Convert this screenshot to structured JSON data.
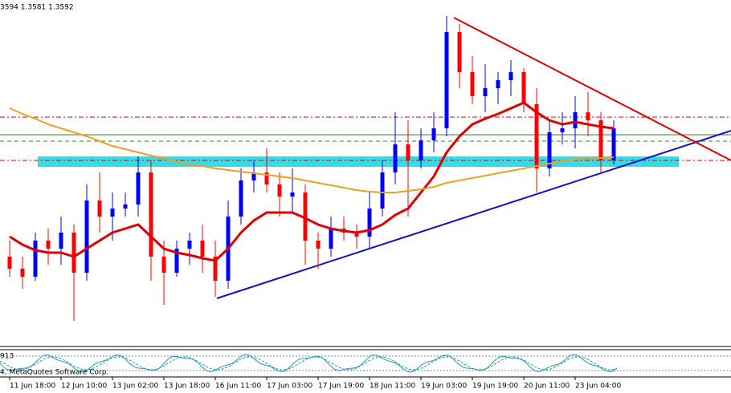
{
  "chart_data": {
    "type": "candlestick",
    "header": "3594 1.3581 1.3592",
    "indicator_label": "913",
    "copyright": "4, MetaQuotes Software Corp.",
    "ylim": [
      1.3395,
      1.361
    ],
    "categories": [
      "11 Jun 18:00",
      null,
      null,
      null,
      "12 Jun 10:00",
      null,
      null,
      null,
      "13 Jun 02:00",
      null,
      null,
      null,
      "13 Jun 18:00",
      null,
      null,
      null,
      "16 Jun 11:00",
      null,
      null,
      null,
      "17 Jun 03:00",
      null,
      null,
      null,
      "17 Jun 19:00",
      null,
      null,
      null,
      "18 Jun 11:00",
      null,
      null,
      null,
      "19 Jun 03:00",
      null,
      null,
      null,
      "19 Jun 19:00",
      null,
      null,
      null,
      "20 Jun 11:00",
      null,
      null,
      null,
      "23 Jun 04:00",
      null,
      null,
      null
    ],
    "up_color": "#0000ff",
    "down_color": "#ff0000",
    "open": [
      1.345,
      1.34425,
      1.34375,
      1.346,
      1.3455,
      1.3465,
      1.344,
      1.3485,
      1.3475,
      1.348,
      1.34825,
      1.35025,
      1.345,
      1.344,
      1.3455,
      1.346,
      1.345,
      1.3435,
      1.3475,
      1.34975,
      1.35025,
      1.3495,
      1.34875,
      1.349,
      1.346,
      1.3455,
      1.34675,
      1.3465,
      1.34625,
      1.348,
      1.35025,
      1.352,
      1.351,
      1.35225,
      1.353,
      1.359,
      1.3565,
      1.355,
      1.3555,
      1.356,
      1.3565,
      1.3545,
      1.3505,
      1.35275,
      1.353,
      1.354,
      1.3535,
      1.351
    ],
    "high": [
      1.346,
      1.345,
      1.3465,
      1.34675,
      1.3475,
      1.347,
      1.3495,
      1.35025,
      1.349,
      1.349,
      1.35125,
      1.351,
      1.346,
      1.346,
      1.3465,
      1.347,
      1.346,
      1.3485,
      1.3505,
      1.351,
      1.35175,
      1.35025,
      1.3505,
      1.3495,
      1.3465,
      1.3475,
      1.3475,
      1.347,
      1.349,
      1.351,
      1.354,
      1.3535,
      1.353,
      1.354,
      1.36,
      1.3595,
      1.3575,
      1.357,
      1.3565,
      1.35725,
      1.35675,
      1.3555,
      1.3535,
      1.354,
      1.355,
      1.35525,
      1.354,
      1.3535
    ],
    "low": [
      1.34375,
      1.343,
      1.3435,
      1.3445,
      1.3445,
      1.341,
      1.3435,
      1.3465,
      1.346,
      1.3475,
      1.3475,
      1.3435,
      1.342,
      1.34375,
      1.3445,
      1.344,
      1.3425,
      1.343,
      1.347,
      1.349,
      1.349,
      1.3475,
      1.34775,
      1.3445,
      1.34425,
      1.345,
      1.346,
      1.3455,
      1.3455,
      1.3475,
      1.3495,
      1.3475,
      1.3505,
      1.3515,
      1.3525,
      1.3555,
      1.3545,
      1.354,
      1.3545,
      1.355,
      1.354,
      1.349,
      1.35,
      1.352,
      1.35175,
      1.3525,
      1.35025,
      1.35075
    ],
    "close": [
      1.34425,
      1.34375,
      1.346,
      1.3455,
      1.3465,
      1.344,
      1.3485,
      1.3475,
      1.348,
      1.34825,
      1.35025,
      1.345,
      1.344,
      1.3455,
      1.346,
      1.345,
      1.3435,
      1.3475,
      1.34975,
      1.35025,
      1.3495,
      1.34875,
      1.349,
      1.346,
      1.3455,
      1.34675,
      1.3465,
      1.34625,
      1.348,
      1.35025,
      1.352,
      1.351,
      1.35225,
      1.353,
      1.359,
      1.3565,
      1.355,
      1.3555,
      1.356,
      1.3565,
      1.3545,
      1.3505,
      1.35275,
      1.353,
      1.354,
      1.3535,
      1.351,
      1.353
    ],
    "series": [
      {
        "color": "#e00000",
        "values": [
          1.34625,
          1.34575,
          1.3454,
          1.34525,
          1.34525,
          1.345,
          1.3455,
          1.346,
          1.3465,
          1.34675,
          1.347,
          1.34625,
          1.3455,
          1.34525,
          1.3451,
          1.3449,
          1.34475,
          1.3455,
          1.3465,
          1.34725,
          1.34775,
          1.34775,
          1.34775,
          1.3474,
          1.347,
          1.34675,
          1.3466,
          1.3465,
          1.34665,
          1.347,
          1.3476,
          1.348,
          1.349,
          1.35,
          1.3515,
          1.3525,
          1.35325,
          1.3536,
          1.3539,
          1.35425,
          1.3546,
          1.354,
          1.3535,
          1.35325,
          1.3534,
          1.35325,
          1.3531,
          1.353
        ]
      },
      {
        "color": "#f0a020",
        "values": [
          1.35425,
          1.3539,
          1.3536,
          1.35325,
          1.353,
          1.35275,
          1.3525,
          1.3522,
          1.3519,
          1.3517,
          1.3515,
          1.3513,
          1.3511,
          1.3509,
          1.35075,
          1.35065,
          1.3505,
          1.3504,
          1.3503,
          1.3502,
          1.3501,
          1.35,
          1.3499,
          1.34975,
          1.3496,
          1.34945,
          1.3493,
          1.34915,
          1.34905,
          1.349,
          1.349,
          1.3491,
          1.3492,
          1.34935,
          1.3496,
          1.34975,
          1.3499,
          1.35005,
          1.3502,
          1.35035,
          1.3505,
          1.35065,
          1.3508,
          1.35095,
          1.35105,
          1.3511,
          1.35115,
          1.3512
        ]
      }
    ],
    "zone": {
      "color": "#33dde8",
      "from": 1.3506,
      "to": 1.35125
    },
    "levels": [
      {
        "value": 1.3537,
        "color": "#e00000",
        "dash": "6 3 2 3"
      },
      {
        "value": 1.3526,
        "color": "#2a8a2a",
        "dash": "none"
      },
      {
        "value": 1.3522,
        "color": "#2a8a2a",
        "dash": "5 4"
      },
      {
        "value": 1.351,
        "color": "#e00000",
        "dash": "6 3 2 3"
      }
    ]
  }
}
